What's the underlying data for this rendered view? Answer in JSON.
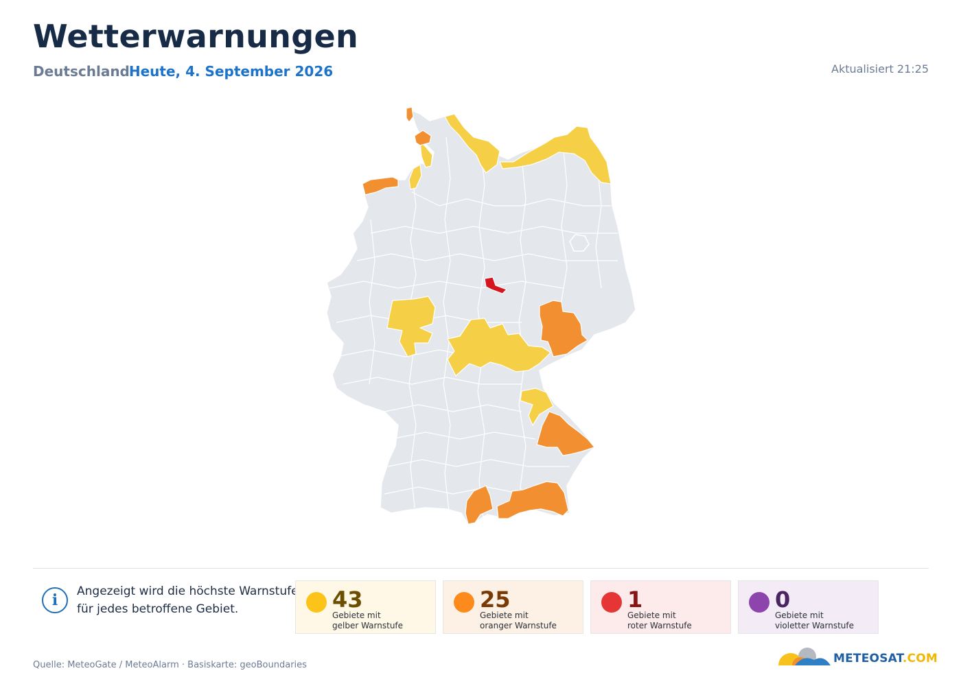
{
  "header": {
    "title": "Wetterwarnungen",
    "country": "Deutschland",
    "date": "Heute, 4. September 2026",
    "updated": "Aktualisiert 21:25"
  },
  "info": {
    "icon": "info-icon",
    "line1": "Angezeigt wird die höchste Warnstufe",
    "line2": "für jedes betroffene Gebiet."
  },
  "legend": [
    {
      "count": "43",
      "line1": "Gebiete mit",
      "line2": "gelber Warnstufe",
      "color": "#fcc419",
      "num_color": "#6b4e00"
    },
    {
      "count": "25",
      "line1": "Gebiete mit",
      "line2": "oranger Warnstufe",
      "color": "#fd8a1c",
      "num_color": "#7a3a05"
    },
    {
      "count": "1",
      "line1": "Gebiete mit",
      "line2": "roter Warnstufe",
      "color": "#e53535",
      "num_color": "#8a1414"
    },
    {
      "count": "0",
      "line1": "Gebiete mit",
      "line2": "violetter Warnstufe",
      "color": "#8e44ad",
      "num_color": "#4a2561"
    }
  ],
  "map_colors": {
    "base": "#e4e7ec",
    "yellow": "#f5cf45",
    "orange": "#f28f31",
    "red": "#d5161f",
    "border": "#ffffff"
  },
  "footer": {
    "source": "Quelle: MeteoGate / MeteoAlarm · Basiskarte: geoBoundaries",
    "logo_main": "METEOSAT",
    "logo_suffix": ".COM"
  }
}
